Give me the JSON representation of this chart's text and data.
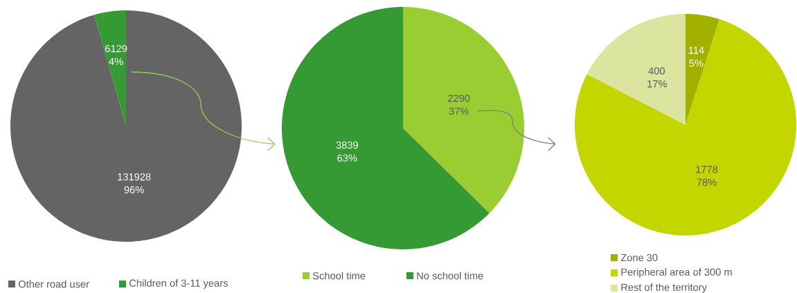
{
  "chart_data": [
    {
      "type": "pie",
      "categories": [
        "Other road user",
        "Children of 3-11 years"
      ],
      "values": [
        131928,
        6129
      ],
      "colors": [
        "#646464",
        "#359a33"
      ],
      "value_labels": [
        "131928 96%",
        "6129 4%"
      ],
      "legend": "bottom"
    },
    {
      "type": "pie",
      "categories": [
        "School time",
        "No school time"
      ],
      "values": [
        2290,
        3839
      ],
      "colors": [
        "#9acd32",
        "#359a33"
      ],
      "value_labels": [
        "2290 37%",
        "3839 63%"
      ],
      "legend": "bottom"
    },
    {
      "type": "pie",
      "categories": [
        "Zone 30",
        "Peripheral area of 300 m",
        "Rest of the territory"
      ],
      "values": [
        114,
        1778,
        400
      ],
      "colors": [
        "#a2b000",
        "#c4d600",
        "#dce5a0"
      ],
      "value_labels": [
        "114 5%",
        "1778 78%",
        "400 17%"
      ],
      "legend": "bottom"
    }
  ]
}
